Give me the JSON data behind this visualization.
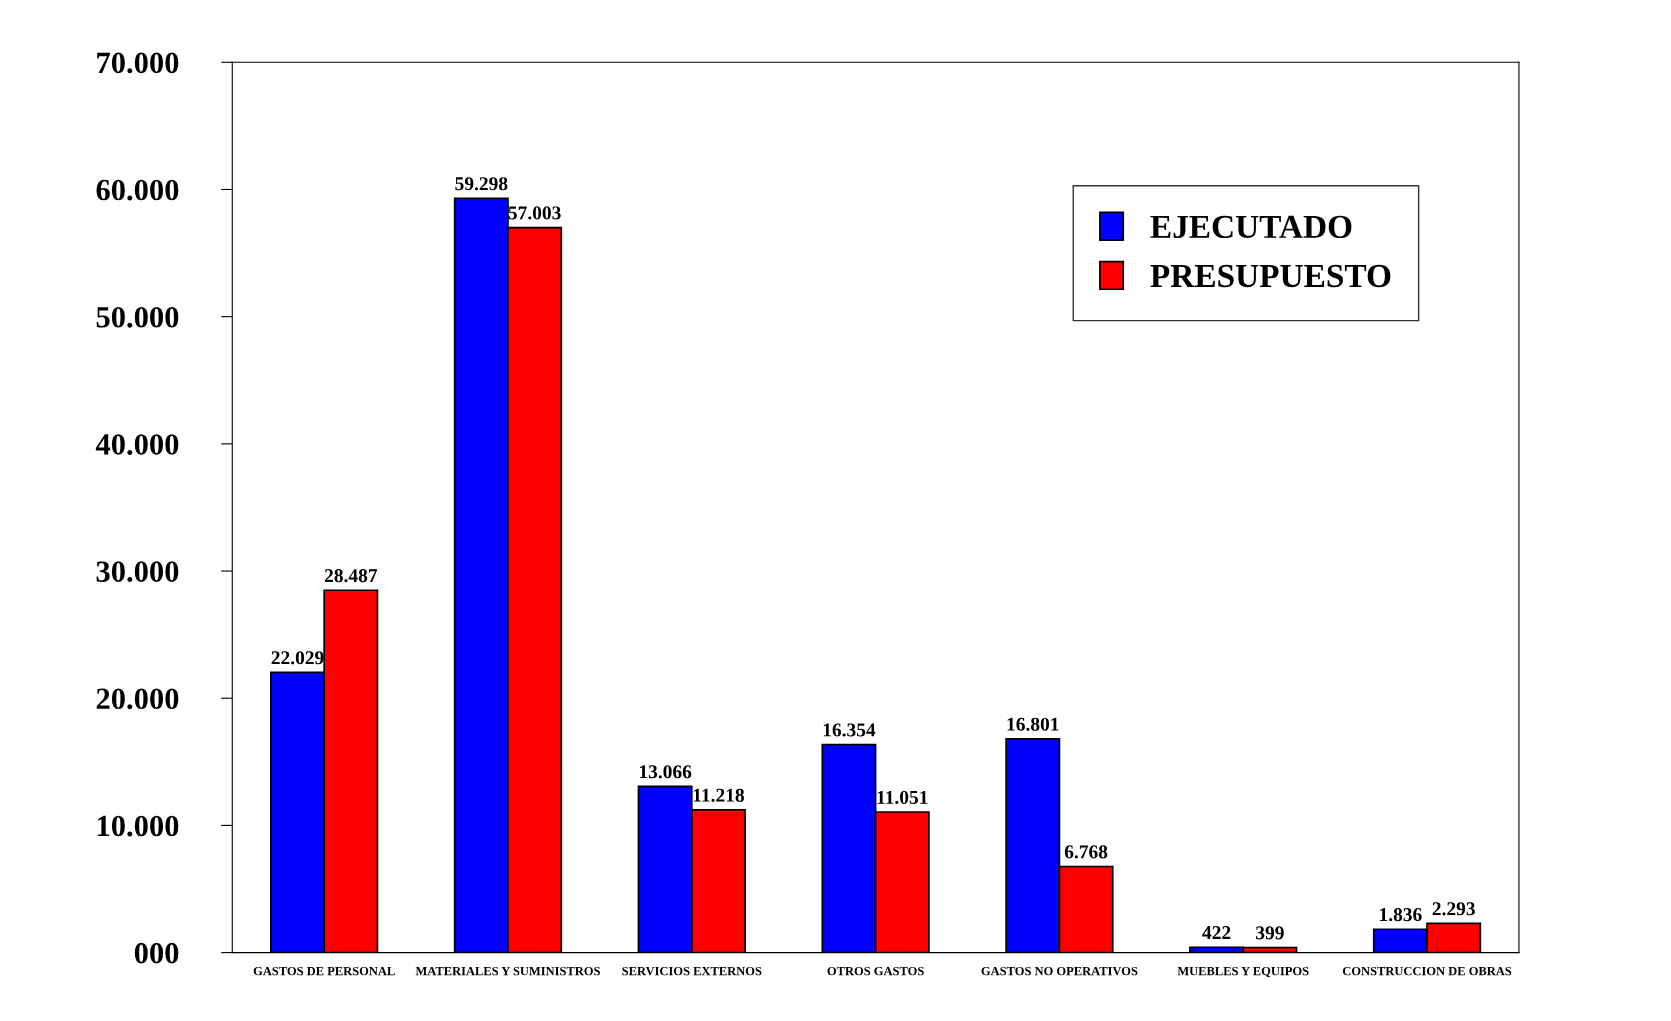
{
  "chart_data": {
    "type": "bar",
    "categories": [
      "GASTOS DE PERSONAL",
      "MATERIALES Y SUMINISTROS",
      "SERVICIOS EXTERNOS",
      "OTROS GASTOS",
      "GASTOS NO OPERATIVOS",
      "MUEBLES Y EQUIPOS",
      "CONSTRUCCION DE OBRAS"
    ],
    "series": [
      {
        "name": "EJECUTADO",
        "color": "#0000ff",
        "values": [
          22029,
          59298,
          13066,
          16354,
          16801,
          422,
          1836
        ],
        "value_labels": [
          "22.029",
          "59.298",
          "13.066",
          "16.354",
          "16.801",
          "422",
          "1.836"
        ]
      },
      {
        "name": "PRESUPUESTO",
        "color": "#ff0000",
        "values": [
          28487,
          57003,
          11218,
          11051,
          6768,
          399,
          2293
        ],
        "value_labels": [
          "28.487",
          "57.003",
          "11.218",
          "11.051",
          "6.768",
          "399",
          "2.293"
        ]
      }
    ],
    "ylim": [
      0,
      70000
    ],
    "yticks": [
      {
        "value": 0,
        "label": "000"
      },
      {
        "value": 10000,
        "label": "10.000"
      },
      {
        "value": 20000,
        "label": "20.000"
      },
      {
        "value": 30000,
        "label": "30.000"
      },
      {
        "value": 40000,
        "label": "40.000"
      },
      {
        "value": 50000,
        "label": "50.000"
      },
      {
        "value": 60000,
        "label": "60.000"
      },
      {
        "value": 70000,
        "label": "70.000"
      }
    ],
    "grid": false,
    "legend": "top right"
  }
}
